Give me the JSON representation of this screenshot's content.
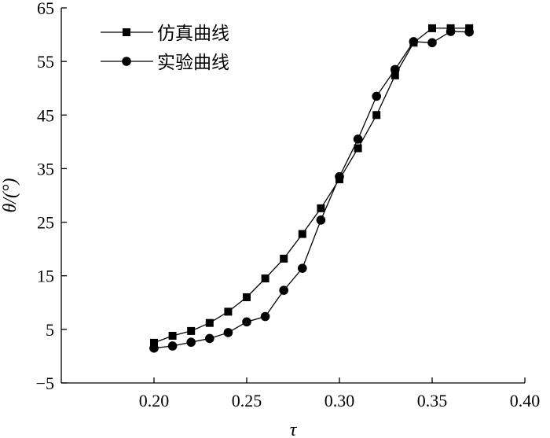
{
  "chart_data": {
    "type": "line",
    "xlabel": "τ",
    "ylabel": "θ/(°)",
    "xlim": [
      0.15,
      0.4
    ],
    "ylim": [
      -5,
      65
    ],
    "xticks": [
      0.2,
      0.25,
      0.3,
      0.35,
      0.4
    ],
    "xtick_labels": [
      "0.20",
      "0.25",
      "0.30",
      "0.35",
      "0.40"
    ],
    "yticks": [
      -5,
      5,
      15,
      25,
      35,
      45,
      55,
      65
    ],
    "ytick_labels": [
      "−5",
      "5",
      "15",
      "25",
      "35",
      "45",
      "55",
      "65"
    ],
    "grid": false,
    "legend_position": "top-left",
    "series": [
      {
        "name": "仿真曲线",
        "marker": "square",
        "x": [
          0.2,
          0.21,
          0.22,
          0.23,
          0.24,
          0.25,
          0.26,
          0.27,
          0.28,
          0.29,
          0.3,
          0.31,
          0.32,
          0.33,
          0.34,
          0.35,
          0.36,
          0.37
        ],
        "y": [
          2.5,
          3.8,
          4.7,
          6.2,
          8.3,
          11.0,
          14.5,
          18.2,
          22.8,
          27.6,
          33.0,
          38.8,
          45.0,
          52.4,
          58.5,
          61.2,
          61.2,
          61.2
        ]
      },
      {
        "name": "实验曲线",
        "marker": "circle",
        "x": [
          0.2,
          0.21,
          0.22,
          0.23,
          0.24,
          0.25,
          0.26,
          0.27,
          0.28,
          0.29,
          0.3,
          0.31,
          0.32,
          0.33,
          0.34,
          0.35,
          0.36,
          0.37
        ],
        "y": [
          1.5,
          1.9,
          2.6,
          3.3,
          4.4,
          6.4,
          7.4,
          12.3,
          16.4,
          25.4,
          33.5,
          40.5,
          48.5,
          53.5,
          58.7,
          58.5,
          60.6,
          60.5
        ]
      }
    ]
  }
}
